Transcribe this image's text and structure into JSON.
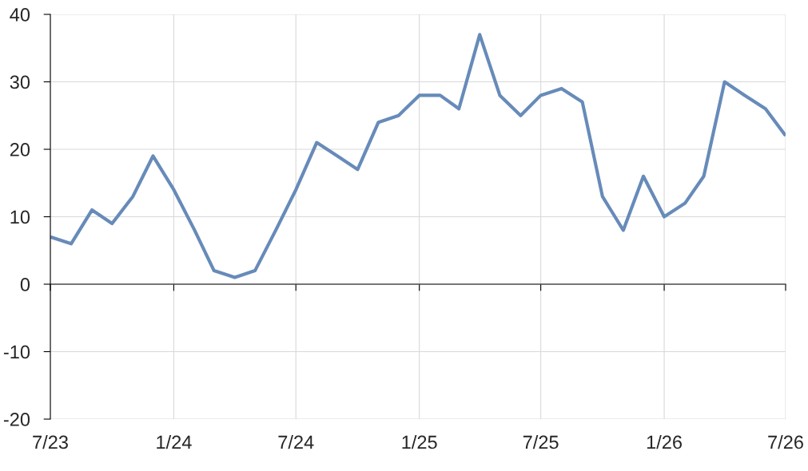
{
  "chart_data": {
    "type": "line",
    "x": [
      "2023-07",
      "2023-08",
      "2023-09",
      "2023-10",
      "2023-11",
      "2023-12",
      "2024-01",
      "2024-02",
      "2024-03",
      "2024-04",
      "2024-05",
      "2024-06",
      "2024-07",
      "2024-08",
      "2024-09",
      "2024-10",
      "2024-11",
      "2024-12",
      "2025-01",
      "2025-02",
      "2025-03",
      "2025-04",
      "2025-05",
      "2025-06",
      "2025-07",
      "2025-08",
      "2025-09",
      "2025-10",
      "2025-11",
      "2025-12",
      "2026-01",
      "2026-02",
      "2026-03",
      "2026-04",
      "2026-05",
      "2026-06",
      "2026-07"
    ],
    "series": [
      {
        "color": "#678bb9",
        "values": [
          7,
          6,
          11,
          9,
          13,
          19,
          14,
          8,
          2,
          1,
          2,
          8,
          14,
          21,
          19,
          17,
          24,
          25,
          28,
          28,
          26,
          37,
          28,
          25,
          28,
          29,
          27,
          13,
          8,
          16,
          10,
          12,
          16,
          30,
          28,
          26,
          22
        ]
      }
    ],
    "xlim": [
      "2023-07",
      "2026-07"
    ],
    "xticks": [
      {
        "value": "2023-07",
        "label": "7/23"
      },
      {
        "value": "2024-01",
        "label": "1/24"
      },
      {
        "value": "2024-07",
        "label": "7/24"
      },
      {
        "value": "2025-01",
        "label": "1/25"
      },
      {
        "value": "2025-07",
        "label": "7/25"
      },
      {
        "value": "2026-01",
        "label": "1/26"
      },
      {
        "value": "2026-07",
        "label": "7/26"
      }
    ],
    "ylim": [
      -20,
      40
    ],
    "yticks": [
      -20,
      -10,
      0,
      10,
      20,
      30,
      40
    ],
    "grid": true
  }
}
